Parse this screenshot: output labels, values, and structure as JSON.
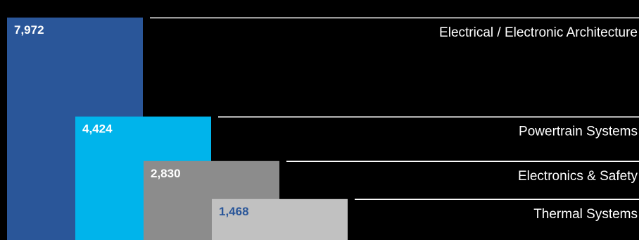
{
  "chart_data": {
    "type": "bar",
    "categories": [
      "Electrical / Electronic Architecture",
      "Powertrain Systems",
      "Electronics & Safety",
      "Thermal Systems"
    ],
    "values": [
      7972,
      4424,
      2830,
      1468
    ],
    "value_labels": [
      "7,972",
      "4,424",
      "2,830",
      "1,468"
    ],
    "title": "",
    "xlabel": "",
    "ylabel": "",
    "ylim": [
      0,
      8600
    ],
    "legend": "none",
    "grid": false
  },
  "colors": {
    "background": "#000000",
    "bars": [
      "#2a5699",
      "#00b4eb",
      "#8c8c8c",
      "#c1c1c1"
    ],
    "value_text": [
      "#ffffff",
      "#ffffff",
      "#ffffff",
      "#2a5699"
    ],
    "leader_line": "#ffffff",
    "category_text": "#ffffff"
  }
}
